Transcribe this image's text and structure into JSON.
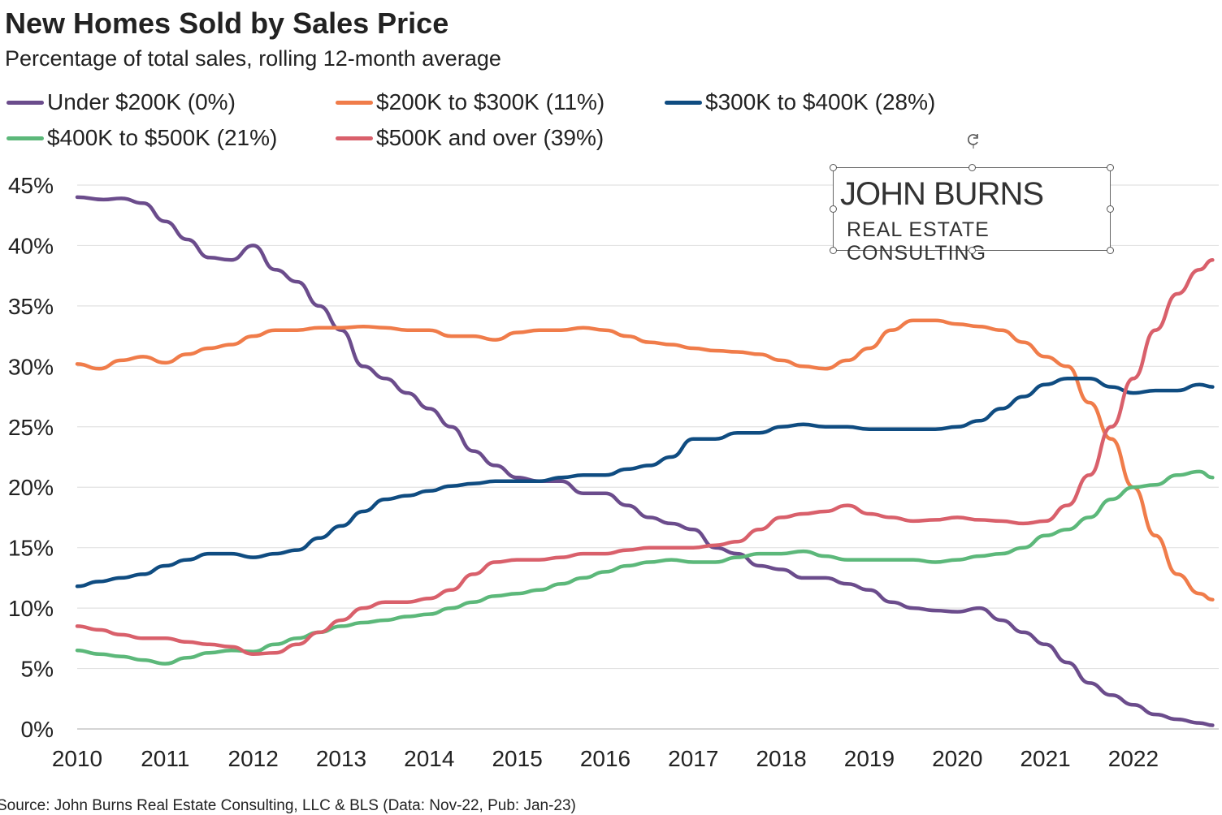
{
  "title": "New Homes Sold by Sales Price",
  "subtitle": "Percentage of total sales, rolling 12-month average",
  "source": "Source: John Burns Real Estate Consulting, LLC & BLS (Data: Nov-22, Pub: Jan-23)",
  "logo": {
    "top_text": "JOHN BURNS",
    "bottom_text": "REAL ESTATE CONSULTING"
  },
  "legend": [
    {
      "label": "Under  $200K  (0%)",
      "color": "#6b4c8c"
    },
    {
      "label": "$200K to  $300K  (11%)",
      "color": "#f07c4a"
    },
    {
      "label": "$300K to  $400K  (28%)",
      "color": "#0f4c81"
    },
    {
      "label": "$400K to  $500K  (21%)",
      "color": "#5cb87a"
    },
    {
      "label": "$500K  and over  (39%)",
      "color": "#d9606b"
    }
  ],
  "chart_data": {
    "type": "line",
    "title": "New Homes Sold by Sales Price",
    "subtitle": "Percentage of total sales, rolling 12-month average",
    "xlabel": "",
    "ylabel": "",
    "xlim": [
      2010,
      2022.9
    ],
    "ylim": [
      0,
      45
    ],
    "x_ticks": [
      "2010",
      "2011",
      "2012",
      "2013",
      "2014",
      "2015",
      "2016",
      "2017",
      "2018",
      "2019",
      "2020",
      "2021",
      "2022"
    ],
    "y_ticks": [
      "0%",
      "5%",
      "10%",
      "15%",
      "20%",
      "25%",
      "30%",
      "35%",
      "40%",
      "45%"
    ],
    "grid": true,
    "series": [
      {
        "name": "Under $200K (0%)",
        "color": "#6b4c8c",
        "x": [
          2010,
          2010.3,
          2010.5,
          2010.75,
          2011,
          2011.25,
          2011.5,
          2011.75,
          2012,
          2012.25,
          2012.5,
          2012.75,
          2013,
          2013.25,
          2013.5,
          2013.75,
          2014,
          2014.25,
          2014.5,
          2014.75,
          2015,
          2015.25,
          2015.5,
          2015.75,
          2016,
          2016.25,
          2016.5,
          2016.75,
          2017,
          2017.25,
          2017.5,
          2017.75,
          2018,
          2018.25,
          2018.5,
          2018.75,
          2019,
          2019.25,
          2019.5,
          2019.75,
          2020,
          2020.25,
          2020.5,
          2020.75,
          2021,
          2021.25,
          2021.5,
          2021.75,
          2022,
          2022.25,
          2022.5,
          2022.75,
          2022.9
        ],
        "y": [
          44,
          43.8,
          43.9,
          43.5,
          42,
          40.5,
          39,
          38.8,
          40,
          38,
          37,
          35,
          33,
          30,
          29,
          27.8,
          26.5,
          25,
          23,
          21.8,
          20.8,
          20.5,
          20.5,
          19.5,
          19.5,
          18.5,
          17.5,
          17,
          16.5,
          15,
          14.5,
          13.5,
          13.2,
          12.5,
          12.5,
          12,
          11.5,
          10.5,
          10,
          9.8,
          9.7,
          10,
          9,
          8,
          7,
          5.5,
          3.8,
          2.8,
          2,
          1.2,
          0.8,
          0.5,
          0.3
        ]
      },
      {
        "name": "$200K to $300K (11%)",
        "color": "#f07c4a",
        "x": [
          2010,
          2010.25,
          2010.5,
          2010.75,
          2011,
          2011.25,
          2011.5,
          2011.75,
          2012,
          2012.25,
          2012.5,
          2012.75,
          2013,
          2013.25,
          2013.5,
          2013.75,
          2014,
          2014.25,
          2014.5,
          2014.75,
          2015,
          2015.25,
          2015.5,
          2015.75,
          2016,
          2016.25,
          2016.5,
          2016.75,
          2017,
          2017.25,
          2017.5,
          2017.75,
          2018,
          2018.25,
          2018.5,
          2018.75,
          2019,
          2019.25,
          2019.5,
          2019.75,
          2020,
          2020.25,
          2020.5,
          2020.75,
          2021,
          2021.25,
          2021.5,
          2021.75,
          2022,
          2022.25,
          2022.5,
          2022.75,
          2022.9
        ],
        "y": [
          30.2,
          29.8,
          30.5,
          30.8,
          30.3,
          31,
          31.5,
          31.8,
          32.5,
          33,
          33,
          33.2,
          33.2,
          33.3,
          33.2,
          33,
          33,
          32.5,
          32.5,
          32.2,
          32.8,
          33,
          33,
          33.2,
          33,
          32.5,
          32,
          31.8,
          31.5,
          31.3,
          31.2,
          31,
          30.5,
          30,
          29.8,
          30.5,
          31.5,
          33,
          33.8,
          33.8,
          33.5,
          33.3,
          33,
          32,
          30.8,
          30,
          27,
          24,
          20,
          16,
          12.8,
          11.2,
          10.7
        ]
      },
      {
        "name": "$300K to $400K (28%)",
        "color": "#0f4c81",
        "x": [
          2010,
          2010.25,
          2010.5,
          2010.75,
          2011,
          2011.25,
          2011.5,
          2011.75,
          2012,
          2012.25,
          2012.5,
          2012.75,
          2013,
          2013.25,
          2013.5,
          2013.75,
          2014,
          2014.25,
          2014.5,
          2014.75,
          2015,
          2015.25,
          2015.5,
          2015.75,
          2016,
          2016.25,
          2016.5,
          2016.75,
          2017,
          2017.25,
          2017.5,
          2017.75,
          2018,
          2018.25,
          2018.5,
          2018.75,
          2019,
          2019.25,
          2019.5,
          2019.75,
          2020,
          2020.25,
          2020.5,
          2020.75,
          2021,
          2021.25,
          2021.5,
          2021.75,
          2022,
          2022.25,
          2022.5,
          2022.75,
          2022.9
        ],
        "y": [
          11.8,
          12.2,
          12.5,
          12.8,
          13.5,
          14,
          14.5,
          14.5,
          14.2,
          14.5,
          14.8,
          15.8,
          16.8,
          18,
          19,
          19.3,
          19.7,
          20.1,
          20.3,
          20.5,
          20.5,
          20.5,
          20.8,
          21,
          21,
          21.5,
          21.8,
          22.5,
          24,
          24,
          24.5,
          24.5,
          25,
          25.2,
          25,
          25,
          24.8,
          24.8,
          24.8,
          24.8,
          25,
          25.5,
          26.5,
          27.5,
          28.5,
          29,
          29,
          28.3,
          27.8,
          28,
          28,
          28.5,
          28.3
        ]
      },
      {
        "name": "$400K to $500K (21%)",
        "color": "#5cb87a",
        "x": [
          2010,
          2010.25,
          2010.5,
          2010.75,
          2011,
          2011.25,
          2011.5,
          2011.75,
          2012,
          2012.25,
          2012.5,
          2012.75,
          2013,
          2013.25,
          2013.5,
          2013.75,
          2014,
          2014.25,
          2014.5,
          2014.75,
          2015,
          2015.25,
          2015.5,
          2015.75,
          2016,
          2016.25,
          2016.5,
          2016.75,
          2017,
          2017.25,
          2017.5,
          2017.75,
          2018,
          2018.25,
          2018.5,
          2018.75,
          2019,
          2019.25,
          2019.5,
          2019.75,
          2020,
          2020.25,
          2020.5,
          2020.75,
          2021,
          2021.25,
          2021.5,
          2021.75,
          2022,
          2022.25,
          2022.5,
          2022.75,
          2022.9
        ],
        "y": [
          6.5,
          6.2,
          6,
          5.7,
          5.4,
          5.9,
          6.3,
          6.5,
          6.4,
          7,
          7.5,
          8,
          8.5,
          8.8,
          9,
          9.3,
          9.5,
          10,
          10.5,
          11,
          11.2,
          11.5,
          12,
          12.5,
          13,
          13.5,
          13.8,
          14,
          13.8,
          13.8,
          14.2,
          14.5,
          14.5,
          14.7,
          14.3,
          14,
          14,
          14,
          14,
          13.8,
          14,
          14.3,
          14.5,
          15,
          16,
          16.5,
          17.5,
          19,
          20,
          20.2,
          21,
          21.3,
          20.8
        ]
      },
      {
        "name": "$500K and over (39%)",
        "color": "#d9606b",
        "x": [
          2010,
          2010.25,
          2010.5,
          2010.75,
          2011,
          2011.25,
          2011.5,
          2011.75,
          2012,
          2012.25,
          2012.5,
          2012.75,
          2013,
          2013.25,
          2013.5,
          2013.75,
          2014,
          2014.25,
          2014.5,
          2014.75,
          2015,
          2015.25,
          2015.5,
          2015.75,
          2016,
          2016.25,
          2016.5,
          2016.75,
          2017,
          2017.25,
          2017.5,
          2017.75,
          2018,
          2018.25,
          2018.5,
          2018.75,
          2019,
          2019.25,
          2019.5,
          2019.75,
          2020,
          2020.25,
          2020.5,
          2020.75,
          2021,
          2021.25,
          2021.5,
          2021.75,
          2022,
          2022.25,
          2022.5,
          2022.75,
          2022.9
        ],
        "y": [
          8.5,
          8.2,
          7.8,
          7.5,
          7.5,
          7.2,
          7,
          6.8,
          6.2,
          6.3,
          7,
          8,
          9,
          10,
          10.5,
          10.5,
          10.8,
          11.5,
          12.8,
          13.8,
          14,
          14,
          14.2,
          14.5,
          14.5,
          14.8,
          15,
          15,
          15,
          15.2,
          15.5,
          16.5,
          17.5,
          17.8,
          18,
          18.5,
          17.8,
          17.5,
          17.2,
          17.3,
          17.5,
          17.3,
          17.2,
          17,
          17.2,
          18.5,
          21,
          25,
          29,
          33,
          36,
          38,
          38.8
        ]
      }
    ]
  }
}
